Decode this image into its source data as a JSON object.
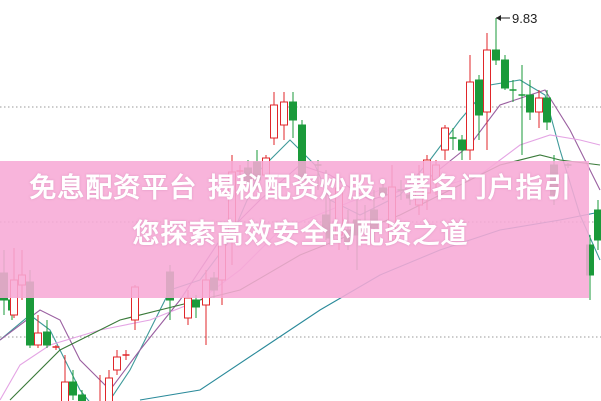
{
  "title": "免息配资平台 揭秘配资炒股：著名门户指引您探索高效安全的配资之道",
  "colors": {
    "up": "#e0262a",
    "down": "#1a9a3a",
    "banner": "#f7aad6",
    "grid": "#9a9a9a",
    "label": "#222222"
  },
  "chart_data": {
    "type": "candlestick",
    "annotation": {
      "label": "9.83",
      "value": 9.83,
      "t": 49.6
    },
    "grid": true,
    "grid_levels": [
      8.94,
      7.79,
      6.64
    ],
    "candles": [
      [
        0.4,
        7.28,
        7.51,
        6.86,
        7.01
      ],
      [
        1.2,
        7.01,
        7.11,
        6.81,
        6.91
      ],
      [
        1.4,
        6.86,
        7.53,
        6.83,
        7.21
      ],
      [
        2.2,
        7.16,
        7.51,
        7.01,
        7.26
      ],
      [
        3.0,
        7.19,
        7.31,
        6.53,
        6.56
      ],
      [
        3.8,
        6.56,
        6.86,
        6.53,
        6.68
      ],
      [
        4.7,
        6.69,
        6.81,
        6.53,
        6.56
      ],
      [
        5.6,
        6.54,
        6.56,
        6.51,
        6.55
      ],
      [
        6.5,
        5.91,
        6.46,
        5.86,
        6.19
      ],
      [
        7.3,
        6.19,
        6.31,
        6.01,
        6.06
      ],
      [
        8.2,
        6.06,
        6.11,
        5.83,
        5.88
      ],
      [
        9.1,
        5.88,
        5.91,
        5.83,
        5.89
      ],
      [
        10.0,
        5.86,
        6.26,
        5.83,
        5.96
      ],
      [
        10.9,
        5.96,
        6.31,
        5.86,
        6.23
      ],
      [
        11.7,
        6.31,
        6.51,
        6.26,
        6.44
      ],
      [
        12.6,
        6.46,
        6.51,
        6.41,
        6.47
      ],
      [
        13.5,
        6.81,
        7.16,
        6.71,
        7.14
      ],
      [
        17.0,
        7.29,
        7.36,
        6.81,
        7.01
      ],
      [
        18.8,
        6.83,
        7.11,
        6.76,
        7.03
      ],
      [
        19.6,
        7.01,
        7.06,
        6.83,
        6.94
      ],
      [
        20.6,
        6.96,
        7.31,
        6.56,
        7.21
      ],
      [
        21.4,
        7.23,
        7.29,
        7.03,
        7.11
      ],
      [
        22.2,
        7.21,
        7.76,
        6.96,
        7.66
      ],
      [
        23.2,
        7.66,
        8.46,
        7.36,
        8.29
      ],
      [
        24.0,
        8.3,
        8.36,
        8.26,
        8.31
      ],
      [
        24.8,
        8.33,
        8.41,
        8.11,
        8.19
      ],
      [
        25.7,
        8.39,
        8.51,
        8.11,
        8.21
      ],
      [
        26.6,
        8.26,
        8.46,
        8.16,
        8.43
      ],
      [
        27.4,
        8.63,
        9.09,
        8.56,
        8.96
      ],
      [
        28.4,
        8.76,
        9.09,
        8.61,
        8.99
      ],
      [
        29.3,
        8.99,
        9.09,
        8.63,
        8.81
      ],
      [
        30.2,
        8.76,
        8.81,
        8.16,
        8.21
      ],
      [
        31.8,
        8.36,
        8.41,
        8.11,
        8.35
      ],
      [
        32.6,
        7.86,
        8.31,
        7.61,
        7.71
      ],
      [
        33.0,
        7.71,
        8.01,
        7.56,
        7.63
      ],
      [
        33.9,
        7.66,
        8.26,
        7.51,
        8.13
      ],
      [
        34.8,
        7.71,
        7.91,
        7.51,
        7.59
      ],
      [
        35.7,
        7.81,
        8.01,
        7.31,
        7.66
      ],
      [
        36.5,
        7.79,
        7.96,
        7.61,
        7.78
      ],
      [
        37.4,
        7.91,
        8.11,
        7.61,
        7.73
      ],
      [
        38.3,
        8.13,
        8.21,
        8.01,
        8.06
      ],
      [
        39.2,
        7.61,
        8.36,
        7.56,
        8.14
      ],
      [
        40.1,
        8.11,
        8.21,
        8.01,
        8.1
      ],
      [
        41.0,
        8.06,
        8.11,
        7.96,
        8.03
      ],
      [
        41.9,
        7.96,
        8.36,
        7.86,
        8.16
      ],
      [
        42.7,
        8.08,
        8.46,
        7.91,
        8.41
      ],
      [
        43.6,
        8.21,
        8.41,
        8.06,
        8.36
      ],
      [
        44.5,
        8.51,
        8.76,
        8.41,
        8.73
      ],
      [
        45.3,
        8.63,
        8.73,
        8.51,
        8.62
      ],
      [
        46.2,
        8.61,
        8.66,
        8.41,
        8.51
      ],
      [
        47.0,
        8.51,
        9.46,
        8.41,
        9.19
      ],
      [
        47.9,
        9.21,
        9.26,
        8.61,
        8.86
      ],
      [
        48.7,
        8.89,
        9.68,
        8.51,
        9.51
      ],
      [
        49.6,
        9.51,
        9.83,
        9.36,
        9.41
      ],
      [
        50.5,
        9.41,
        9.46,
        9.11,
        9.13
      ],
      [
        51.3,
        9.11,
        9.21,
        8.99,
        9.1
      ],
      [
        52.2,
        9.06,
        9.36,
        8.46,
        9.05
      ],
      [
        53.0,
        9.06,
        9.21,
        8.81,
        8.89
      ],
      [
        53.9,
        8.89,
        9.11,
        8.73,
        9.03
      ],
      [
        54.7,
        9.03,
        9.11,
        8.71,
        8.79
      ],
      [
        55.4,
        8.36,
        8.46,
        7.96,
        8.06
      ],
      [
        56.8,
        8.36,
        8.38,
        8.33,
        8.35
      ],
      [
        59.0,
        7.56,
        7.66,
        7.01,
        7.26
      ],
      [
        59.8,
        7.91,
        8.01,
        7.51,
        7.61
      ]
    ],
    "moving_averages": [
      {
        "color": "#3f9a9a",
        "points": [
          [
            0,
            6.61
          ],
          [
            3,
            6.86
          ],
          [
            5,
            6.71
          ],
          [
            8,
            6.11
          ],
          [
            10,
            5.86
          ],
          [
            13,
            6.31
          ],
          [
            17,
            7.11
          ],
          [
            20,
            7.21
          ],
          [
            23,
            7.61
          ],
          [
            26,
            8.31
          ],
          [
            29,
            8.61
          ],
          [
            31.5,
            8.36
          ],
          [
            33,
            8.01
          ],
          [
            36,
            7.86
          ],
          [
            40,
            8.06
          ],
          [
            43,
            8.41
          ],
          [
            46,
            8.81
          ],
          [
            49,
            9.16
          ],
          [
            52,
            9.21
          ],
          [
            54.5,
            9.06
          ],
          [
            56,
            8.51
          ],
          [
            58,
            7.86
          ],
          [
            60,
            7.41
          ]
        ]
      },
      {
        "color": "#9a5fa0",
        "points": [
          [
            0,
            6.61
          ],
          [
            4,
            6.91
          ],
          [
            6,
            6.81
          ],
          [
            8,
            6.41
          ],
          [
            11,
            6.11
          ],
          [
            14,
            6.51
          ],
          [
            18,
            7.01
          ],
          [
            22,
            7.61
          ],
          [
            26,
            8.01
          ],
          [
            30,
            8.36
          ],
          [
            33,
            8.26
          ],
          [
            37,
            8.01
          ],
          [
            42,
            8.16
          ],
          [
            47,
            8.56
          ],
          [
            50,
            8.96
          ],
          [
            53,
            9.06
          ],
          [
            54.5,
            9.11
          ],
          [
            57,
            8.71
          ],
          [
            60,
            8.11
          ]
        ]
      },
      {
        "color": "#e4a4e4",
        "points": [
          [
            0,
            6.01
          ],
          [
            2,
            6.36
          ],
          [
            5,
            6.56
          ],
          [
            10,
            6.71
          ],
          [
            15,
            6.81
          ],
          [
            20,
            7.01
          ],
          [
            24,
            7.31
          ],
          [
            28,
            7.71
          ],
          [
            33,
            7.91
          ],
          [
            38,
            8.11
          ],
          [
            43,
            8.11
          ],
          [
            48,
            8.26
          ],
          [
            52,
            8.56
          ],
          [
            55,
            8.66
          ],
          [
            58,
            8.61
          ],
          [
            60,
            8.56
          ]
        ]
      },
      {
        "color": "#3a7a3a",
        "points": [
          [
            1,
            6.01
          ],
          [
            6,
            6.51
          ],
          [
            12,
            6.81
          ],
          [
            18,
            6.96
          ],
          [
            24,
            7.11
          ],
          [
            30,
            7.46
          ],
          [
            35,
            7.66
          ],
          [
            40,
            7.86
          ],
          [
            45,
            8.11
          ],
          [
            50,
            8.36
          ],
          [
            54,
            8.46
          ],
          [
            56,
            8.41
          ],
          [
            60,
            8.36
          ]
        ]
      },
      {
        "color": "#2a8a9a",
        "points": [
          [
            14,
            6.01
          ],
          [
            20,
            6.11
          ],
          [
            26,
            6.51
          ],
          [
            32,
            6.91
          ],
          [
            38,
            7.26
          ],
          [
            44,
            7.51
          ],
          [
            50,
            7.71
          ],
          [
            56,
            7.81
          ],
          [
            60,
            7.89
          ]
        ]
      }
    ]
  }
}
